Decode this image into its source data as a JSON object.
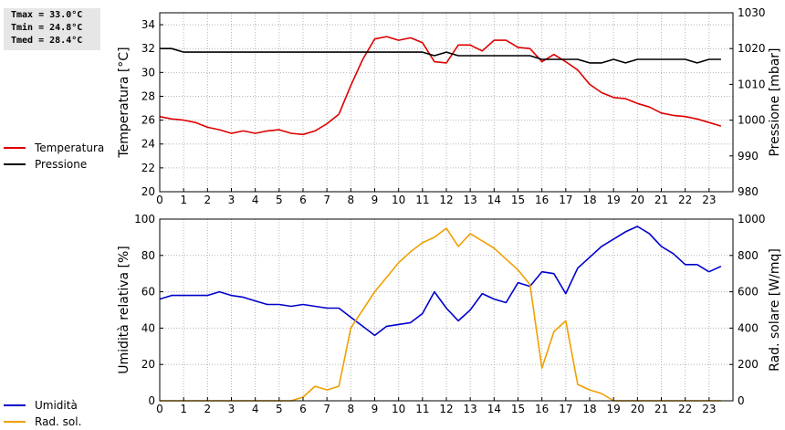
{
  "stats": {
    "tmax": "Tmax = 33.0°C",
    "tmin": "Tmin = 24.8°C",
    "tmed": "Tmed = 28.4°C"
  },
  "chart_data": [
    {
      "type": "line",
      "grid": true,
      "xlim": [
        0,
        24
      ],
      "x_ticks": [
        0,
        1,
        2,
        3,
        4,
        5,
        6,
        7,
        8,
        9,
        10,
        11,
        12,
        13,
        14,
        15,
        16,
        17,
        18,
        19,
        20,
        21,
        22,
        23
      ],
      "y_left": {
        "label": "Temperatura [°C]",
        "range": [
          20,
          35
        ],
        "ticks": [
          20,
          22,
          24,
          26,
          28,
          30,
          32,
          34
        ]
      },
      "y_right": {
        "label": "Pressione [mbar]",
        "range": [
          980,
          1030
        ],
        "ticks": [
          980,
          990,
          1000,
          1010,
          1020,
          1030
        ]
      },
      "legend_position": "left",
      "series": [
        {
          "name": "Temperatura",
          "color": "#dd0000",
          "axis": "left",
          "x": [
            0,
            0.5,
            1,
            1.5,
            2,
            2.5,
            3,
            3.5,
            4,
            4.5,
            5,
            5.5,
            6,
            6.5,
            7,
            7.5,
            8,
            8.5,
            9,
            9.5,
            10,
            10.5,
            11,
            11.5,
            12,
            12.5,
            13,
            13.5,
            14,
            14.5,
            15,
            15.5,
            16,
            16.5,
            17,
            17.5,
            18,
            18.5,
            19,
            19.5,
            20,
            20.5,
            21,
            21.5,
            22,
            22.5,
            23,
            23.5
          ],
          "y": [
            26.3,
            26.1,
            26.0,
            25.8,
            25.4,
            25.2,
            24.9,
            25.1,
            24.9,
            25.1,
            25.2,
            24.9,
            24.8,
            25.1,
            25.7,
            26.5,
            28.9,
            31.1,
            32.8,
            33.0,
            32.7,
            32.9,
            32.5,
            30.9,
            30.8,
            32.3,
            32.3,
            31.8,
            32.7,
            32.7,
            32.1,
            32.0,
            30.9,
            31.5,
            30.9,
            30.2,
            29.0,
            28.3,
            27.9,
            27.8,
            27.4,
            27.1,
            26.6,
            26.4,
            26.3,
            26.1,
            25.8,
            25.5
          ]
        },
        {
          "name": "Pressione",
          "color": "#000000",
          "axis": "right",
          "x": [
            0,
            0.5,
            1,
            1.5,
            2,
            2.5,
            3,
            3.5,
            4,
            4.5,
            5,
            5.5,
            6,
            6.5,
            7,
            7.5,
            8,
            8.5,
            9,
            9.5,
            10,
            10.5,
            11,
            11.5,
            12,
            12.5,
            13,
            13.5,
            14,
            14.5,
            15,
            15.5,
            16,
            16.5,
            17,
            17.5,
            18,
            18.5,
            19,
            19.5,
            20,
            20.5,
            21,
            21.5,
            22,
            22.5,
            23,
            23.5
          ],
          "y": [
            1020,
            1020,
            1019,
            1019,
            1019,
            1019,
            1019,
            1019,
            1019,
            1019,
            1019,
            1019,
            1019,
            1019,
            1019,
            1019,
            1019,
            1019,
            1019,
            1019,
            1019,
            1019,
            1019,
            1018,
            1019,
            1018,
            1018,
            1018,
            1018,
            1018,
            1018,
            1018,
            1017,
            1017,
            1017,
            1017,
            1016,
            1016,
            1017,
            1016,
            1017,
            1017,
            1017,
            1017,
            1017,
            1016,
            1017,
            1017
          ]
        }
      ]
    },
    {
      "type": "line",
      "grid": true,
      "xlim": [
        0,
        24
      ],
      "x_ticks": [
        0,
        1,
        2,
        3,
        4,
        5,
        6,
        7,
        8,
        9,
        10,
        11,
        12,
        13,
        14,
        15,
        16,
        17,
        18,
        19,
        20,
        21,
        22,
        23
      ],
      "y_left": {
        "label": "Umidità relativa [%]",
        "range": [
          0,
          100
        ],
        "ticks": [
          0,
          20,
          40,
          60,
          80,
          100
        ]
      },
      "y_right": {
        "label": "Rad. solare [W/mq]",
        "range": [
          0,
          1000
        ],
        "ticks": [
          0,
          200,
          400,
          600,
          800,
          1000
        ]
      },
      "legend_position": "left",
      "series": [
        {
          "name": "Umidità",
          "color": "#0000cc",
          "axis": "left",
          "x": [
            0,
            0.5,
            1,
            1.5,
            2,
            2.5,
            3,
            3.5,
            4,
            4.5,
            5,
            5.5,
            6,
            6.5,
            7,
            7.5,
            8,
            8.5,
            9,
            9.5,
            10,
            10.5,
            11,
            11.5,
            12,
            12.5,
            13,
            13.5,
            14,
            14.5,
            15,
            15.5,
            16,
            16.5,
            17,
            17.5,
            18,
            18.5,
            19,
            19.5,
            20,
            20.5,
            21,
            21.5,
            22,
            22.5,
            23,
            23.5
          ],
          "y": [
            56,
            58,
            58,
            58,
            58,
            60,
            58,
            57,
            55,
            53,
            53,
            52,
            53,
            52,
            51,
            51,
            46,
            41,
            36,
            41,
            42,
            43,
            48,
            60,
            51,
            44,
            50,
            59,
            56,
            54,
            65,
            63,
            71,
            70,
            59,
            73,
            79,
            85,
            89,
            93,
            96,
            92,
            85,
            81,
            75,
            75,
            71,
            74
          ]
        },
        {
          "name": "Rad. sol.",
          "color": "#f0a000",
          "axis": "right",
          "x": [
            0,
            0.5,
            1,
            1.5,
            2,
            2.5,
            3,
            3.5,
            4,
            4.5,
            5,
            5.5,
            6,
            6.5,
            7,
            7.5,
            8,
            8.5,
            9,
            9.5,
            10,
            10.5,
            11,
            11.5,
            12,
            12.5,
            13,
            13.5,
            14,
            14.5,
            15,
            15.5,
            16,
            16.5,
            17,
            17.5,
            18,
            18.5,
            19,
            19.5,
            20,
            20.5,
            21,
            21.5,
            22,
            22.5,
            23,
            23.5
          ],
          "y": [
            0,
            0,
            0,
            0,
            0,
            0,
            0,
            0,
            0,
            0,
            0,
            0,
            20,
            80,
            60,
            80,
            400,
            500,
            600,
            680,
            760,
            820,
            870,
            900,
            950,
            850,
            920,
            880,
            840,
            780,
            720,
            640,
            180,
            380,
            440,
            90,
            60,
            40,
            0,
            0,
            0,
            0,
            0,
            0,
            0,
            0,
            0,
            0
          ]
        }
      ]
    }
  ]
}
